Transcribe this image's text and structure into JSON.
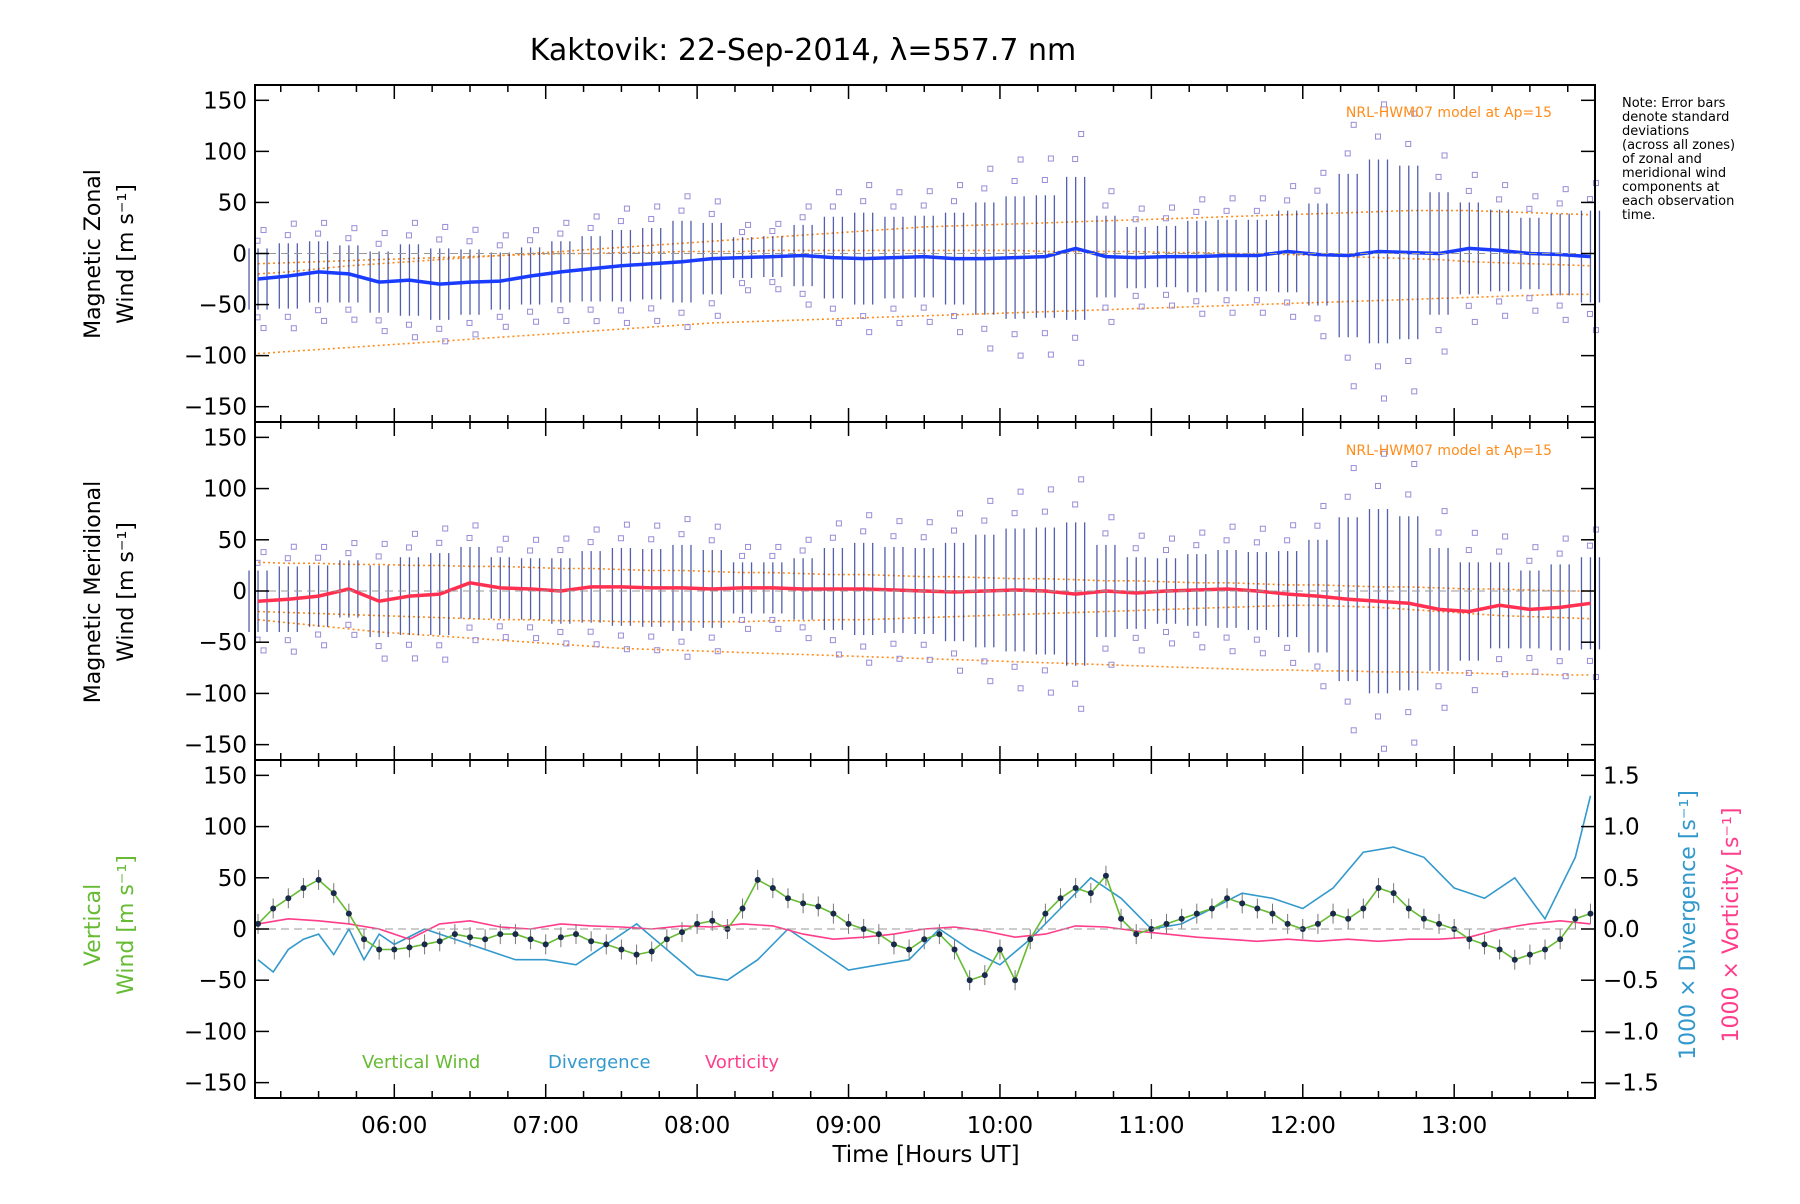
{
  "title": "Kaktovik: 22-Sep-2014, λ=557.7 nm",
  "note": [
    "Note: Error bars",
    "denote standard",
    "deviations",
    "(across all zones)",
    "of zonal and",
    "meridional wind",
    "components at",
    "each observation",
    "time."
  ],
  "colors": {
    "zonal_mean": "#1a3cff",
    "meridional_mean": "#ff3050",
    "model": "#ff8c1a",
    "vertical": "#66bb33",
    "divergence": "#3399cc",
    "vorticity": "#ff3d8a",
    "zone_marks": "#9a8cd8",
    "bars": "#1a2a90"
  },
  "chart_data": [
    {
      "type": "line",
      "panel": "zonal",
      "ylabel": [
        "Magnetic Zonal",
        "Wind [m s⁻¹]"
      ],
      "ylim": [
        -165,
        165
      ],
      "yticks": [
        "150",
        "100",
        "50",
        "0",
        "−50",
        "−100",
        "−150"
      ],
      "model_label": "NRL-HWM07 model at Ap=15",
      "x": [
        5.1,
        5.3,
        5.5,
        5.7,
        5.9,
        6.1,
        6.3,
        6.5,
        6.7,
        6.9,
        7.1,
        7.3,
        7.5,
        7.7,
        7.9,
        8.1,
        8.3,
        8.5,
        8.7,
        8.9,
        9.1,
        9.3,
        9.5,
        9.7,
        9.9,
        10.1,
        10.3,
        10.5,
        10.7,
        10.9,
        11.1,
        11.3,
        11.5,
        11.7,
        11.9,
        12.1,
        12.3,
        12.5,
        12.7,
        12.9,
        13.1,
        13.3,
        13.5,
        13.7,
        13.9
      ],
      "mean": [
        -25,
        -22,
        -18,
        -20,
        -28,
        -26,
        -30,
        -28,
        -27,
        -22,
        -18,
        -15,
        -12,
        -10,
        -8,
        -5,
        -4,
        -3,
        -2,
        -4,
        -5,
        -4,
        -3,
        -5,
        -5,
        -4,
        -3,
        5,
        -3,
        -4,
        -3,
        -3,
        -2,
        -2,
        2,
        -1,
        -2,
        2,
        1,
        0,
        5,
        3,
        0,
        -1,
        -3
      ],
      "spread": [
        30,
        32,
        30,
        28,
        30,
        35,
        35,
        32,
        28,
        28,
        30,
        32,
        35,
        35,
        40,
        35,
        20,
        20,
        30,
        40,
        45,
        40,
        40,
        45,
        55,
        60,
        60,
        70,
        40,
        30,
        30,
        35,
        35,
        35,
        40,
        50,
        80,
        90,
        85,
        60,
        45,
        40,
        35,
        40,
        45
      ],
      "model_upper": [
        -20,
        -18,
        -15,
        -12,
        -10,
        -8,
        -6,
        -4,
        -2,
        0,
        2,
        4,
        6,
        8,
        10,
        12,
        14,
        16,
        18,
        20,
        22,
        24,
        26,
        27,
        28,
        29,
        30,
        31,
        32,
        33,
        34,
        35,
        36,
        37,
        38,
        39,
        40,
        41,
        42,
        42,
        42,
        41,
        40,
        39,
        38
      ],
      "model_mid": [
        -10,
        -9,
        -8,
        -7,
        -6,
        -5,
        -4,
        -3,
        -2,
        -1,
        0,
        0,
        1,
        1,
        2,
        2,
        2,
        3,
        3,
        3,
        3,
        3,
        3,
        3,
        3,
        3,
        2,
        2,
        2,
        2,
        1,
        1,
        0,
        0,
        -1,
        -2,
        -3,
        -4,
        -5,
        -6,
        -8,
        -9,
        -10,
        -11,
        -12
      ],
      "model_lower": [
        -98,
        -96,
        -94,
        -92,
        -90,
        -88,
        -86,
        -84,
        -82,
        -80,
        -78,
        -76,
        -74,
        -72,
        -70,
        -68,
        -67,
        -66,
        -65,
        -64,
        -63,
        -62,
        -61,
        -60,
        -59,
        -58,
        -57,
        -56,
        -55,
        -54,
        -53,
        -52,
        -51,
        -50,
        -49,
        -48,
        -47,
        -46,
        -45,
        -44,
        -43,
        -42,
        -41,
        -40,
        -40
      ]
    },
    {
      "type": "line",
      "panel": "meridional",
      "ylabel": [
        "Magnetic Meridional",
        "Wind [m s⁻¹]"
      ],
      "ylim": [
        -165,
        165
      ],
      "yticks": [
        "150",
        "100",
        "50",
        "0",
        "−50",
        "−100",
        "−150"
      ],
      "model_label": "NRL-HWM07 model at Ap=15",
      "x": [
        5.1,
        5.3,
        5.5,
        5.7,
        5.9,
        6.1,
        6.3,
        6.5,
        6.7,
        6.9,
        7.1,
        7.3,
        7.5,
        7.7,
        7.9,
        8.1,
        8.3,
        8.5,
        8.7,
        8.9,
        9.1,
        9.3,
        9.5,
        9.7,
        9.9,
        10.1,
        10.3,
        10.5,
        10.7,
        10.9,
        11.1,
        11.3,
        11.5,
        11.7,
        11.9,
        12.1,
        12.3,
        12.5,
        12.7,
        12.9,
        13.1,
        13.3,
        13.5,
        13.7,
        13.9
      ],
      "mean": [
        -10,
        -8,
        -5,
        2,
        -10,
        -5,
        -3,
        8,
        3,
        2,
        0,
        4,
        4,
        3,
        3,
        2,
        3,
        3,
        2,
        2,
        2,
        1,
        0,
        -1,
        0,
        1,
        0,
        -3,
        0,
        -2,
        0,
        1,
        2,
        0,
        -3,
        -5,
        -8,
        -10,
        -12,
        -18,
        -20,
        -14,
        -18,
        -16,
        -12
      ],
      "spread": [
        30,
        32,
        30,
        28,
        35,
        38,
        40,
        35,
        30,
        30,
        32,
        35,
        38,
        38,
        42,
        38,
        25,
        25,
        30,
        40,
        45,
        42,
        42,
        48,
        55,
        60,
        62,
        70,
        45,
        35,
        32,
        35,
        38,
        38,
        42,
        55,
        80,
        90,
        85,
        60,
        48,
        42,
        38,
        42,
        45
      ],
      "model_upper": [
        28,
        27,
        27,
        26,
        26,
        25,
        25,
        24,
        24,
        23,
        22,
        22,
        21,
        20,
        20,
        19,
        18,
        18,
        17,
        16,
        16,
        15,
        14,
        14,
        13,
        12,
        12,
        11,
        10,
        10,
        9,
        8,
        8,
        7,
        6,
        6,
        5,
        4,
        4,
        3,
        2,
        2,
        1,
        0,
        0
      ],
      "model_mid": [
        -20,
        -21,
        -22,
        -23,
        -24,
        -25,
        -26,
        -27,
        -28,
        -28,
        -29,
        -29,
        -30,
        -30,
        -30,
        -30,
        -30,
        -29,
        -29,
        -28,
        -28,
        -27,
        -26,
        -25,
        -24,
        -23,
        -22,
        -21,
        -20,
        -19,
        -18,
        -17,
        -16,
        -15,
        -14,
        -14,
        -15,
        -16,
        -18,
        -20,
        -22,
        -24,
        -25,
        -26,
        -27
      ],
      "model_lower": [
        -28,
        -31,
        -34,
        -37,
        -40,
        -42,
        -44,
        -46,
        -48,
        -50,
        -52,
        -54,
        -56,
        -57,
        -58,
        -59,
        -60,
        -61,
        -62,
        -63,
        -64,
        -65,
        -66,
        -67,
        -68,
        -69,
        -70,
        -71,
        -72,
        -73,
        -74,
        -75,
        -76,
        -77,
        -77,
        -78,
        -78,
        -79,
        -79,
        -80,
        -80,
        -81,
        -81,
        -82,
        -82
      ]
    },
    {
      "type": "line",
      "panel": "vertical",
      "ylabel_left": [
        "Vertical",
        "Wind [m s⁻¹]"
      ],
      "ylabel_right1": "1000 × Divergence [s⁻¹]",
      "ylabel_right2": "1000 × Vorticity [s⁻¹]",
      "ylim": [
        -165,
        165
      ],
      "ylim_right": [
        -1.65,
        1.65
      ],
      "yticks": [
        "150",
        "100",
        "50",
        "0",
        "−50",
        "−100",
        "−150"
      ],
      "yticks_right": [
        "1.5",
        "1.0",
        "0.5",
        "0.0",
        "−0.5",
        "−1.0",
        "−1.5"
      ],
      "legend": [
        "Vertical Wind",
        "Divergence",
        "Vorticity"
      ],
      "xlabel": "Time [Hours UT]",
      "xticks": [
        "06:00",
        "07:00",
        "08:00",
        "09:00",
        "10:00",
        "11:00",
        "12:00",
        "13:00"
      ],
      "xlim": [
        5.08,
        13.93
      ],
      "vertical_x": [
        5.1,
        5.2,
        5.3,
        5.4,
        5.5,
        5.6,
        5.7,
        5.8,
        5.9,
        6.0,
        6.1,
        6.2,
        6.3,
        6.4,
        6.5,
        6.6,
        6.7,
        6.8,
        6.9,
        7.0,
        7.1,
        7.2,
        7.3,
        7.4,
        7.5,
        7.6,
        7.7,
        7.8,
        7.9,
        8.0,
        8.1,
        8.2,
        8.3,
        8.4,
        8.5,
        8.6,
        8.7,
        8.8,
        8.9,
        9.0,
        9.1,
        9.2,
        9.3,
        9.4,
        9.5,
        9.6,
        9.7,
        9.8,
        9.9,
        10.0,
        10.1,
        10.2,
        10.3,
        10.4,
        10.5,
        10.6,
        10.7,
        10.8,
        10.9,
        11.0,
        11.1,
        11.2,
        11.3,
        11.4,
        11.5,
        11.6,
        11.7,
        11.8,
        11.9,
        12.0,
        12.1,
        12.2,
        12.3,
        12.4,
        12.5,
        12.6,
        12.7,
        12.8,
        12.9,
        13.0,
        13.1,
        13.2,
        13.3,
        13.4,
        13.5,
        13.6,
        13.7,
        13.8,
        13.9
      ],
      "vertical": [
        5,
        20,
        30,
        40,
        48,
        35,
        15,
        -10,
        -20,
        -20,
        -18,
        -15,
        -12,
        -5,
        -8,
        -10,
        -5,
        -5,
        -10,
        -15,
        -8,
        -5,
        -12,
        -15,
        -20,
        -25,
        -22,
        -10,
        -3,
        5,
        8,
        0,
        20,
        48,
        40,
        30,
        25,
        22,
        15,
        5,
        0,
        -5,
        -15,
        -20,
        -10,
        -5,
        -20,
        -50,
        -45,
        -20,
        -50,
        -10,
        15,
        30,
        40,
        35,
        52,
        10,
        -5,
        0,
        5,
        10,
        15,
        20,
        30,
        25,
        20,
        15,
        5,
        0,
        5,
        15,
        10,
        20,
        40,
        35,
        20,
        10,
        5,
        0,
        -10,
        -15,
        -20,
        -30,
        -25,
        -20,
        -10,
        10,
        15
      ],
      "divergence_x": [
        5.1,
        5.2,
        5.3,
        5.4,
        5.5,
        5.6,
        5.7,
        5.8,
        5.9,
        6.0,
        6.2,
        6.4,
        6.6,
        6.8,
        7.0,
        7.2,
        7.4,
        7.6,
        7.8,
        8.0,
        8.2,
        8.4,
        8.6,
        8.8,
        9.0,
        9.2,
        9.4,
        9.6,
        9.8,
        10.0,
        10.2,
        10.4,
        10.6,
        10.8,
        11.0,
        11.2,
        11.4,
        11.6,
        11.8,
        12.0,
        12.2,
        12.4,
        12.6,
        12.8,
        13.0,
        13.2,
        13.4,
        13.6,
        13.8,
        13.9
      ],
      "divergence": [
        -0.3,
        -0.42,
        -0.2,
        -0.1,
        -0.05,
        -0.25,
        0.0,
        -0.3,
        -0.05,
        -0.15,
        0.0,
        -0.1,
        -0.2,
        -0.3,
        -0.3,
        -0.35,
        -0.15,
        0.05,
        -0.2,
        -0.45,
        -0.5,
        -0.3,
        0.0,
        -0.2,
        -0.4,
        -0.35,
        -0.3,
        0.0,
        -0.2,
        -0.35,
        -0.1,
        0.2,
        0.5,
        0.3,
        0.0,
        0.05,
        0.2,
        0.35,
        0.3,
        0.2,
        0.4,
        0.75,
        0.8,
        0.7,
        0.4,
        0.3,
        0.5,
        0.1,
        0.7,
        1.3
      ],
      "vorticity_x": [
        5.1,
        5.3,
        5.5,
        5.7,
        5.9,
        6.1,
        6.3,
        6.5,
        6.7,
        6.9,
        7.1,
        7.3,
        7.5,
        7.7,
        7.9,
        8.1,
        8.3,
        8.5,
        8.7,
        8.9,
        9.1,
        9.3,
        9.5,
        9.7,
        9.9,
        10.1,
        10.3,
        10.5,
        10.7,
        10.9,
        11.1,
        11.3,
        11.5,
        11.7,
        11.9,
        12.1,
        12.3,
        12.5,
        12.7,
        12.9,
        13.1,
        13.3,
        13.5,
        13.7,
        13.9
      ],
      "vorticity": [
        0.05,
        0.1,
        0.08,
        0.05,
        0.0,
        -0.1,
        0.05,
        0.08,
        0.02,
        0.0,
        0.05,
        0.03,
        0.02,
        0.0,
        0.03,
        0.02,
        0.05,
        0.03,
        -0.05,
        -0.1,
        -0.08,
        -0.05,
        0.0,
        0.02,
        -0.02,
        -0.08,
        -0.05,
        0.03,
        0.02,
        -0.02,
        -0.05,
        -0.08,
        -0.1,
        -0.12,
        -0.1,
        -0.12,
        -0.1,
        -0.12,
        -0.1,
        -0.1,
        -0.08,
        0.0,
        0.05,
        0.08,
        0.05
      ]
    }
  ]
}
